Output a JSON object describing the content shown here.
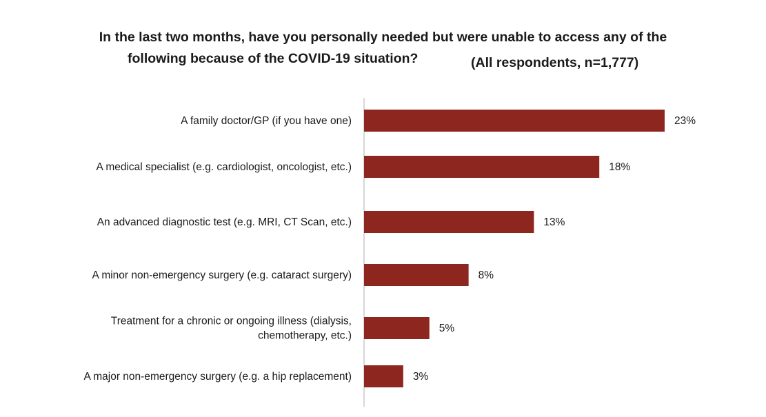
{
  "chart_data": {
    "type": "bar",
    "orientation": "horizontal",
    "title_line1": "In the last two months, have you personally needed but were unable to access any of the",
    "title_line2": "following because of the COVID-19 situation?",
    "subtitle": "(All respondents, n=1,777)",
    "categories": [
      [
        "A family doctor/GP (if you have one)"
      ],
      [
        "A medical specialist (e.g. cardiologist, oncologist, etc.)"
      ],
      [
        "An advanced diagnostic test (e.g. MRI, CT Scan, etc.)"
      ],
      [
        "A minor non-emergency surgery (e.g. cataract surgery)"
      ],
      [
        "Treatment for a chronic or ongoing illness (dialysis,",
        "chemotherapy, etc.)"
      ],
      [
        "A major non-emergency surgery (e.g. a hip replacement)"
      ]
    ],
    "values": [
      23,
      18,
      13,
      8,
      5,
      3
    ],
    "value_labels": [
      "23%",
      "18%",
      "13%",
      "8%",
      "5%",
      "3%"
    ],
    "unit": "%",
    "bar_color": "#8e2620",
    "axis_color": "#c8c8c8",
    "grid": false,
    "legend": "none"
  }
}
